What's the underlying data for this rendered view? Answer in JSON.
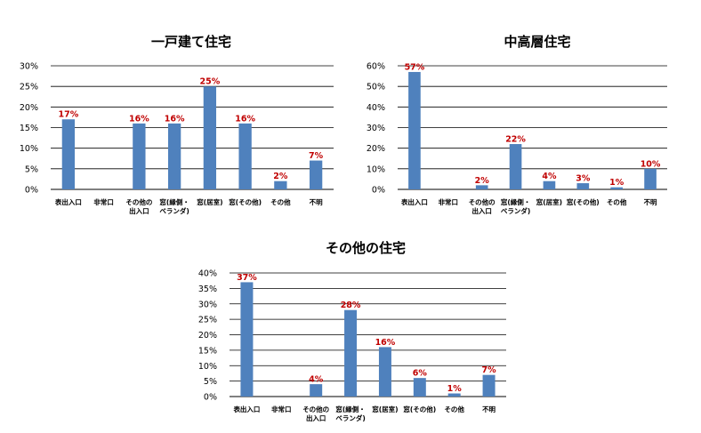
{
  "colors": {
    "bar": "#4f81bd",
    "label": "#c00000",
    "grid": "#000000"
  },
  "chart_data": [
    {
      "type": "bar",
      "title": "一戸建て住宅",
      "ylim": [
        0,
        30
      ],
      "yticks": [
        "0%",
        "5%",
        "10%",
        "15%",
        "20%",
        "25%",
        "30%"
      ],
      "grid": true,
      "categories": [
        [
          "表出入口"
        ],
        [
          "非常口"
        ],
        [
          "その他の",
          "出入口"
        ],
        [
          "窓(縁側・",
          "ベランダ)"
        ],
        [
          "窓(居室)"
        ],
        [
          "窓(その他)"
        ],
        [
          "その他"
        ],
        [
          "不明"
        ]
      ],
      "values": [
        17,
        null,
        16,
        16,
        25,
        16,
        2,
        7
      ],
      "labels": [
        "17%",
        "",
        "16%",
        "16%",
        "25%",
        "16%",
        "2%",
        "7%"
      ]
    },
    {
      "type": "bar",
      "title": "中高層住宅",
      "ylim": [
        0,
        60
      ],
      "yticks": [
        "0%",
        "10%",
        "20%",
        "30%",
        "40%",
        "50%",
        "60%"
      ],
      "grid": true,
      "categories": [
        [
          "表出入口"
        ],
        [
          "非常口"
        ],
        [
          "その他の",
          "出入口"
        ],
        [
          "窓(縁側・",
          "ベランダ)"
        ],
        [
          "窓(居室)"
        ],
        [
          "窓(その他)"
        ],
        [
          "その他"
        ],
        [
          "不明"
        ]
      ],
      "values": [
        57,
        null,
        2,
        22,
        4,
        3,
        1,
        10
      ],
      "labels": [
        "57%",
        "",
        "2%",
        "22%",
        "4%",
        "3%",
        "1%",
        "10%"
      ]
    },
    {
      "type": "bar",
      "title": "その他の住宅",
      "ylim": [
        0,
        40
      ],
      "yticks": [
        "0%",
        "5%",
        "10%",
        "15%",
        "20%",
        "25%",
        "30%",
        "35%",
        "40%"
      ],
      "grid": true,
      "categories": [
        [
          "表出入口"
        ],
        [
          "非常口"
        ],
        [
          "その他の",
          "出入口"
        ],
        [
          "窓(縁側・",
          "ベランダ)"
        ],
        [
          "窓(居室)"
        ],
        [
          "窓(その他)"
        ],
        [
          "その他"
        ],
        [
          "不明"
        ]
      ],
      "values": [
        37,
        null,
        4,
        28,
        16,
        6,
        1,
        7
      ],
      "labels": [
        "37%",
        "",
        "4%",
        "28%",
        "16%",
        "6%",
        "1%",
        "7%"
      ]
    }
  ]
}
